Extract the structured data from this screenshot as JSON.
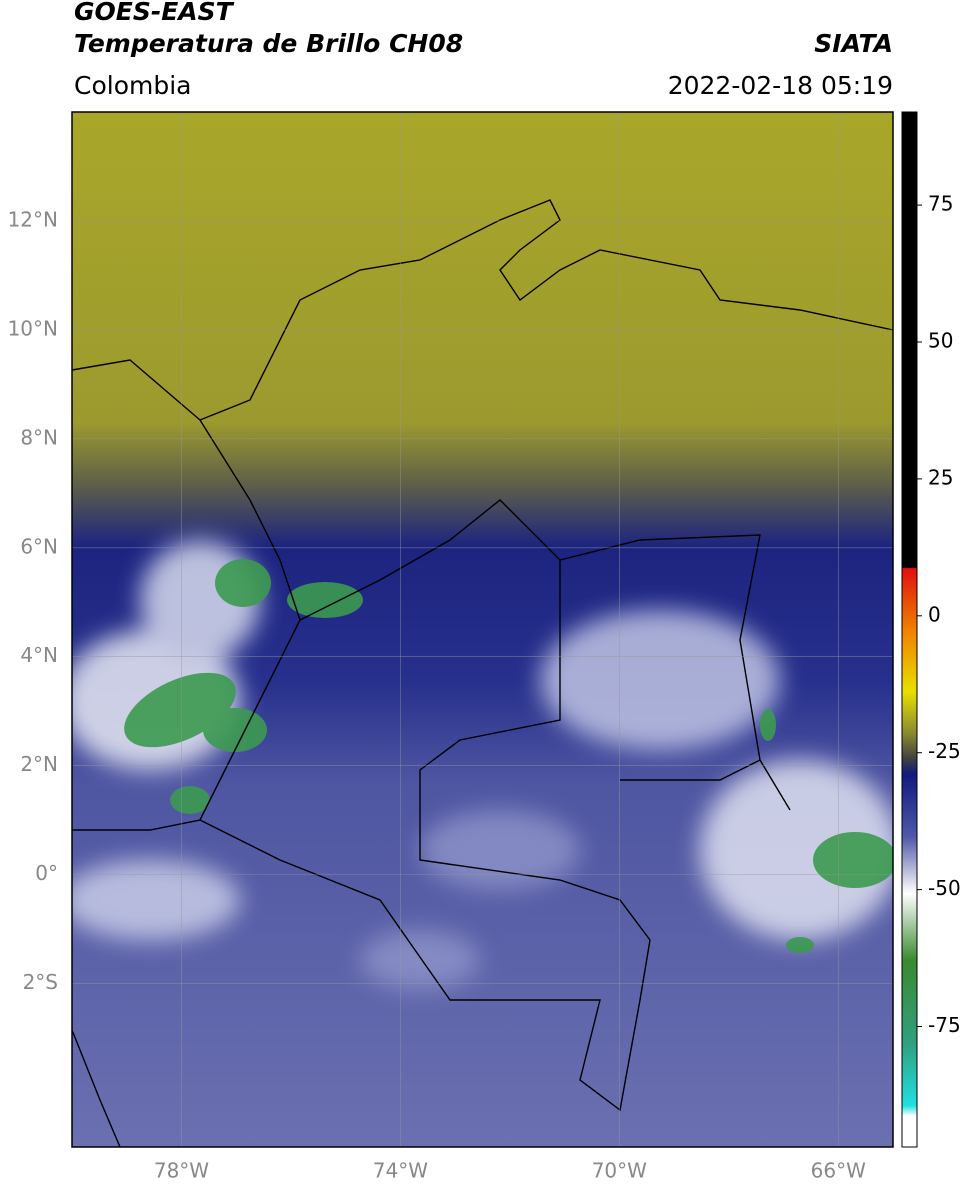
{
  "header": {
    "title": "GOES-EAST",
    "subtitle": "Temperatura de Brillo CH08",
    "source": "SIATA",
    "region": "Colombia",
    "datetime": "2022-02-18 05:19"
  },
  "map": {
    "xlim": [
      -80,
      -65
    ],
    "ylim": [
      -5,
      14
    ],
    "xticks": [
      {
        "value": -78,
        "label": "78°W"
      },
      {
        "value": -74,
        "label": "74°W"
      },
      {
        "value": -70,
        "label": "70°W"
      },
      {
        "value": -66,
        "label": "66°W"
      }
    ],
    "yticks": [
      {
        "value": 12,
        "label": "12°N"
      },
      {
        "value": 10,
        "label": "10°N"
      },
      {
        "value": 8,
        "label": "8°N"
      },
      {
        "value": 6,
        "label": "6°N"
      },
      {
        "value": 4,
        "label": "4°N"
      },
      {
        "value": 2,
        "label": "2°N"
      },
      {
        "value": 0,
        "label": "0°"
      },
      {
        "value": -2,
        "label": "2°S"
      }
    ],
    "grid": true
  },
  "colorbar": {
    "lim": [
      -97,
      92
    ],
    "ticks": [
      75,
      50,
      25,
      0,
      -25,
      -50,
      -75
    ]
  }
}
